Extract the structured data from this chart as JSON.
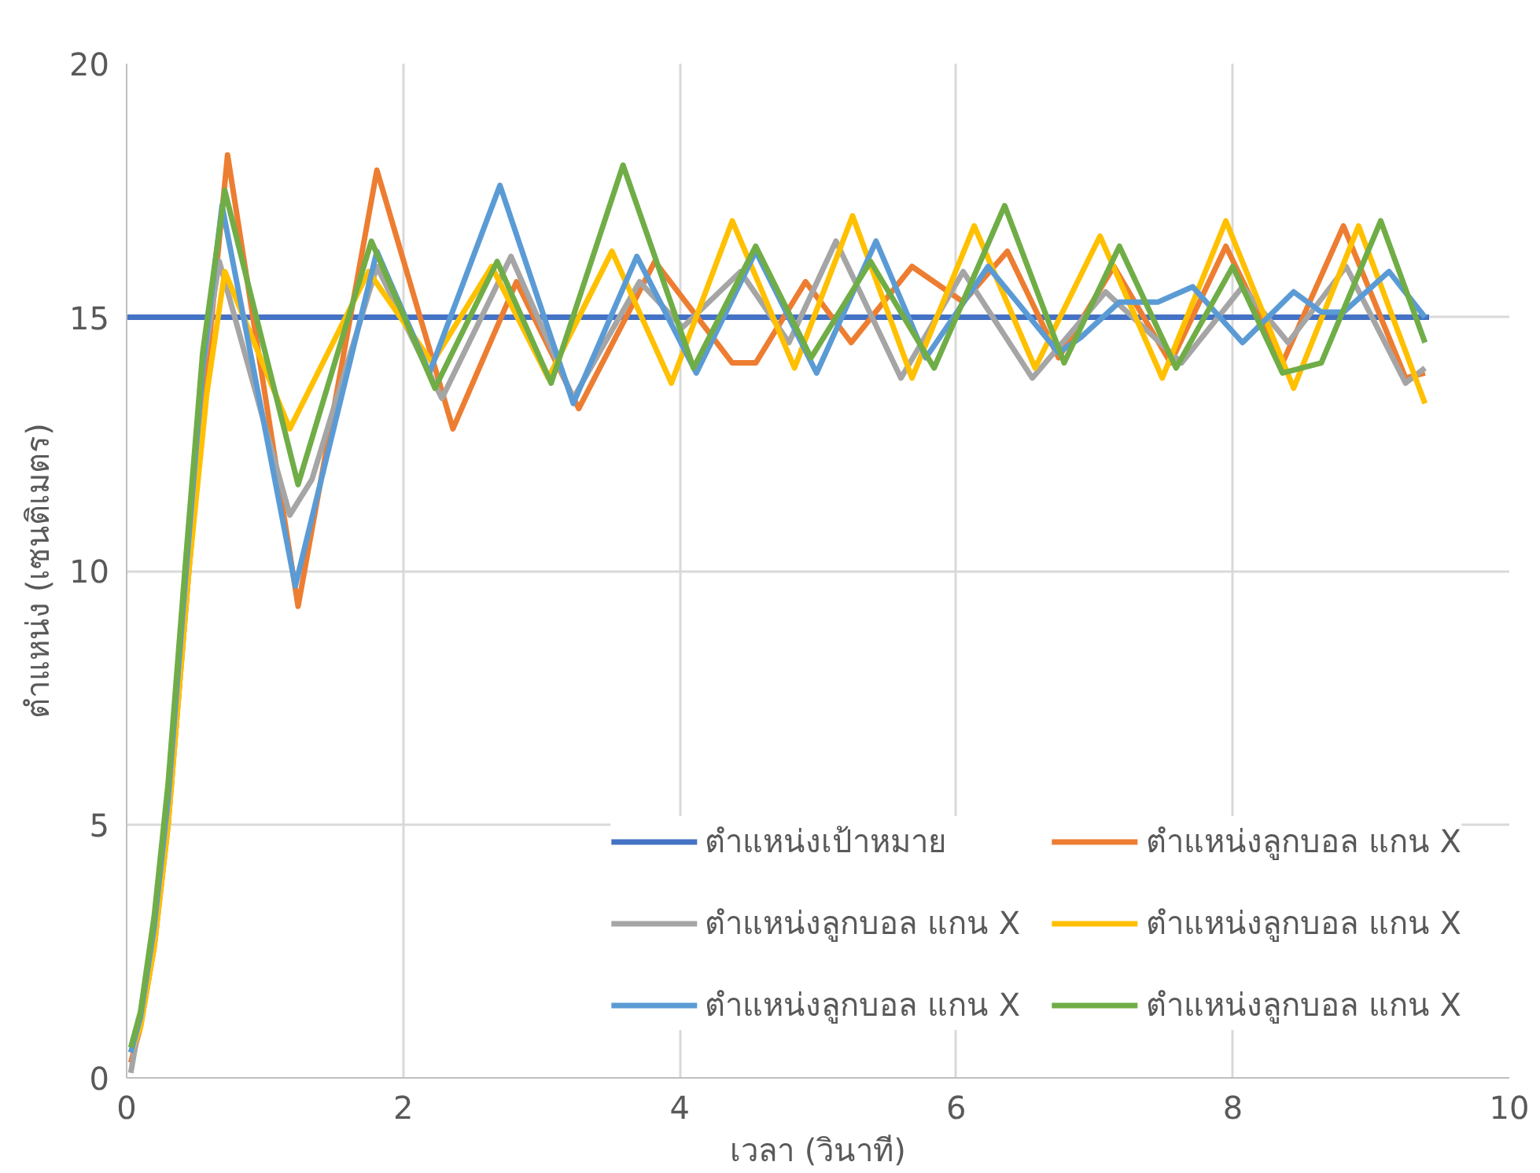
{
  "chart_data": {
    "type": "line",
    "xlabel": "เวลา (วินาที)",
    "ylabel": "ตำแหน่ง (เซนติเมตร)",
    "xlim": [
      0,
      10
    ],
    "xticks": [
      0,
      2,
      4,
      6,
      8,
      10
    ],
    "ylim": [
      0,
      20
    ],
    "yticks": [
      0,
      5,
      10,
      15,
      20
    ],
    "grid": true,
    "legend": "bottom right",
    "marker": "none",
    "line_style": "solid",
    "series": [
      {
        "name": "ตำแหน่งเป้าหมาย",
        "color": "#4472c4",
        "x": [
          0,
          9.42
        ],
        "values": [
          15,
          15
        ]
      },
      {
        "name": "ตำแหน่งลูกบอล แกน X",
        "color": "#ed7d31",
        "x": [
          0.03,
          0.1,
          0.2,
          0.3,
          0.45,
          0.58,
          0.73,
          1.24,
          1.81,
          2.36,
          2.82,
          3.27,
          3.82,
          4.38,
          4.55,
          4.91,
          5.24,
          5.68,
          6.05,
          6.37,
          6.74,
          7.14,
          7.55,
          7.95,
          8.36,
          8.8,
          9.25,
          9.39
        ],
        "values": [
          0.3,
          1.0,
          2.6,
          5.0,
          10,
          14,
          18.2,
          9.3,
          17.9,
          12.8,
          15.7,
          13.2,
          16.1,
          14.1,
          14.1,
          15.7,
          14.5,
          16.0,
          15.3,
          16.3,
          14.2,
          16.0,
          14.1,
          16.4,
          14.1,
          16.8,
          13.8,
          13.9
        ]
      },
      {
        "name": "ตำแหน่งลูกบอล แกน X",
        "color": "#a5a5a5",
        "x": [
          0.03,
          0.1,
          0.2,
          0.3,
          0.43,
          0.55,
          0.67,
          1.18,
          1.34,
          1.81,
          2.28,
          2.78,
          3.23,
          3.71,
          4.02,
          4.44,
          4.79,
          5.13,
          5.6,
          6.05,
          6.55,
          7.08,
          7.63,
          8.07,
          8.4,
          8.82,
          9.25,
          9.39
        ],
        "values": [
          0.1,
          1.2,
          3.0,
          5.5,
          10,
          14,
          16.1,
          11.1,
          11.8,
          16.0,
          13.4,
          16.2,
          13.4,
          15.7,
          14.8,
          15.9,
          14.5,
          16.5,
          13.8,
          15.9,
          13.8,
          15.5,
          14.1,
          15.6,
          14.5,
          16.0,
          13.7,
          14.0
        ]
      },
      {
        "name": "ตำแหน่งลูกบอล แกน X",
        "color": "#ffc000",
        "x": [
          0.03,
          0.1,
          0.2,
          0.3,
          0.45,
          0.58,
          0.71,
          1.18,
          1.75,
          2.21,
          2.64,
          3.05,
          3.51,
          3.94,
          4.38,
          4.83,
          5.25,
          5.68,
          6.13,
          6.57,
          7.04,
          7.49,
          7.95,
          8.44,
          8.91,
          9.39
        ],
        "values": [
          0.5,
          1.0,
          2.6,
          5.0,
          10,
          13.5,
          15.9,
          12.8,
          15.9,
          14.1,
          16.0,
          13.8,
          16.3,
          13.7,
          16.9,
          14.0,
          17.0,
          13.8,
          16.8,
          14.0,
          16.6,
          13.8,
          16.9,
          13.6,
          16.8,
          13.3
        ]
      },
      {
        "name": "ตำแหน่งลูกบอล แกน X",
        "color": "#5b9bd5",
        "x": [
          0.03,
          0.1,
          0.2,
          0.3,
          0.43,
          0.55,
          0.69,
          1.22,
          1.81,
          2.19,
          2.7,
          3.23,
          3.69,
          4.12,
          4.55,
          4.99,
          5.42,
          5.78,
          6.23,
          6.74,
          6.9,
          7.18,
          7.46,
          7.71,
          8.07,
          8.44,
          8.64,
          8.8,
          9.13,
          9.39
        ],
        "values": [
          0.5,
          1.2,
          3.0,
          5.5,
          10,
          14,
          17.2,
          9.7,
          16.3,
          13.9,
          17.6,
          13.3,
          16.2,
          13.9,
          16.3,
          13.9,
          16.5,
          14.2,
          16.0,
          14.3,
          14.6,
          15.3,
          15.3,
          15.6,
          14.5,
          15.5,
          15.1,
          15.1,
          15.9,
          15.0
        ]
      },
      {
        "name": "ตำแหน่งลูกบอล แกน X",
        "color": "#70ad47",
        "x": [
          0.03,
          0.1,
          0.2,
          0.3,
          0.43,
          0.55,
          0.71,
          1.24,
          1.77,
          2.23,
          2.68,
          3.07,
          3.59,
          4.1,
          4.55,
          4.95,
          5.38,
          5.84,
          6.35,
          6.78,
          7.18,
          7.59,
          8.0,
          8.36,
          8.64,
          9.07,
          9.39
        ],
        "values": [
          0.6,
          1.3,
          3.2,
          5.8,
          10.3,
          14.3,
          17.5,
          11.7,
          16.5,
          13.6,
          16.1,
          13.7,
          18.0,
          14.0,
          16.4,
          14.2,
          16.1,
          14.0,
          17.2,
          14.1,
          16.4,
          14.0,
          16.0,
          13.9,
          14.1,
          16.9,
          14.5
        ]
      }
    ]
  }
}
